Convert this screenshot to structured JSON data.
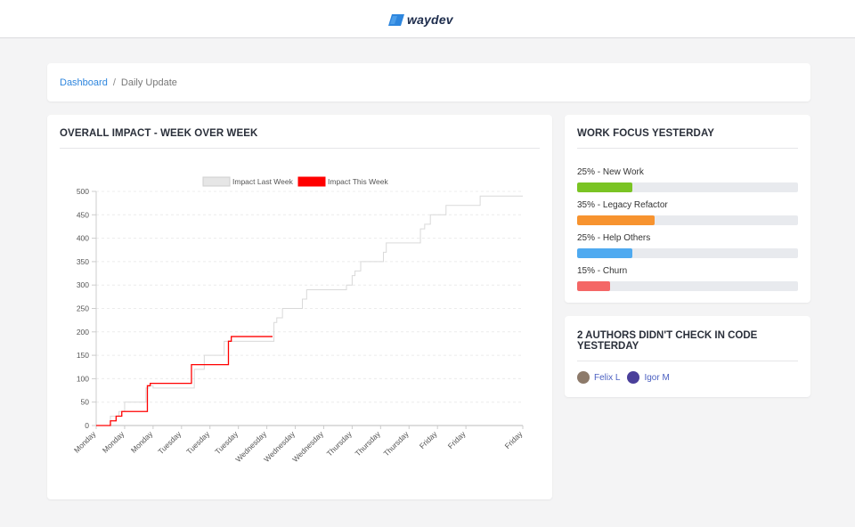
{
  "header": {
    "brand_name": "waydev",
    "logo_color": "#2e86de"
  },
  "breadcrumb": {
    "items": [
      "Dashboard",
      "Daily Update"
    ],
    "separator": "/"
  },
  "impact_card": {
    "title": "OVERALL IMPACT - WEEK OVER WEEK"
  },
  "chart_data": {
    "type": "line",
    "title": "",
    "xlabel": "",
    "ylabel": "",
    "ylim": [
      0,
      500
    ],
    "yticks": [
      0,
      50,
      100,
      150,
      200,
      250,
      300,
      350,
      400,
      450,
      500
    ],
    "x_tick_labels": [
      "Monday",
      "Monday",
      "Monday",
      "Tuesday",
      "Tuesday",
      "Tuesday",
      "Wednesday",
      "Wednesday",
      "Wednesday",
      "Thursday",
      "Thursday",
      "Thursday",
      "Friday",
      "Friday",
      "Friday"
    ],
    "x_tick_positions": [
      0,
      1,
      2,
      3,
      4,
      5,
      6,
      7,
      8,
      9,
      10,
      11,
      12,
      13,
      15
    ],
    "xlim": [
      0,
      15
    ],
    "step": true,
    "grid": {
      "y": true,
      "x": false,
      "style": "dashed"
    },
    "legend_position": "top-center",
    "series": [
      {
        "name": "Impact Last Week",
        "color": "#d9d9d9",
        "x": [
          0,
          0.5,
          0.8,
          1,
          1.75,
          1.85,
          2,
          3.25,
          3.45,
          3.8,
          4.5,
          4.75,
          5,
          6.25,
          6.35,
          6.55,
          6.7,
          7.25,
          7.4,
          7.5,
          8.8,
          9,
          9.1,
          9.3,
          10.1,
          10.2,
          10.4,
          11.3,
          11.4,
          11.55,
          11.75,
          12.2,
          12.3,
          13.5,
          13.6,
          14.5,
          15
        ],
        "y": [
          0,
          20,
          30,
          50,
          80,
          85,
          80,
          80,
          120,
          150,
          180,
          180,
          180,
          220,
          230,
          250,
          250,
          270,
          290,
          290,
          300,
          320,
          330,
          350,
          370,
          390,
          390,
          390,
          420,
          430,
          450,
          450,
          470,
          490,
          490,
          490,
          490
        ]
      },
      {
        "name": "Impact This Week",
        "color": "#ff0000",
        "x": [
          0,
          0.5,
          0.7,
          0.9,
          1.3,
          1.8,
          1.9,
          2.05,
          3.35,
          3.45,
          3.55,
          4.55,
          4.65,
          4.75,
          5.1,
          6.2
        ],
        "y": [
          0,
          10,
          20,
          30,
          30,
          85,
          90,
          90,
          130,
          130,
          130,
          130,
          180,
          190,
          190,
          190
        ]
      }
    ]
  },
  "focus_card": {
    "title": "WORK FOCUS YESTERDAY",
    "items": [
      {
        "label": "25% - New Work",
        "percent": 25,
        "color": "#7ac423"
      },
      {
        "label": "35% - Legacy Refactor",
        "percent": 35,
        "color": "#f7932f"
      },
      {
        "label": "25% - Help Others",
        "percent": 25,
        "color": "#4faaf0"
      },
      {
        "label": "15% - Churn",
        "percent": 15,
        "color": "#f46766"
      }
    ]
  },
  "authors_card": {
    "title": "2 AUTHORS DIDN'T CHECK IN CODE YESTERDAY",
    "authors": [
      {
        "name": "Felix L",
        "avatar_color": "#8d7a6a"
      },
      {
        "name": "Igor M",
        "avatar_color": "#4a3f9a"
      }
    ]
  }
}
